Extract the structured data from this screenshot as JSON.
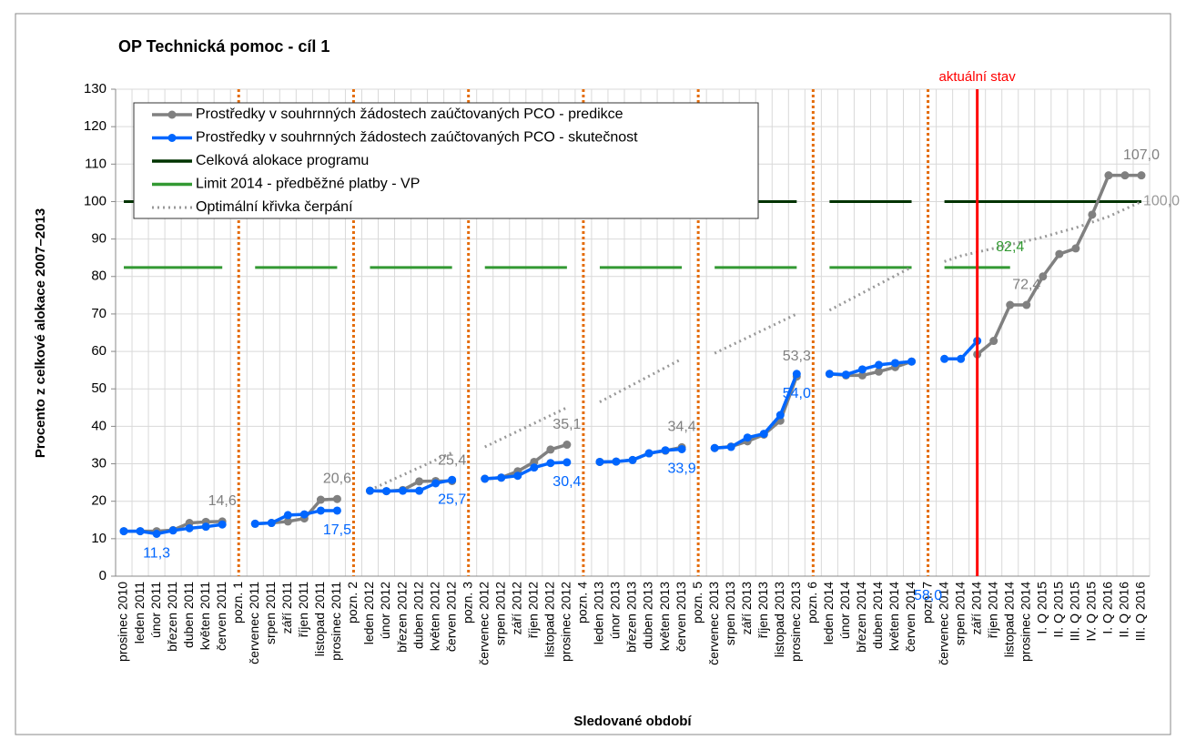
{
  "chart_data": {
    "type": "line",
    "title": "OP Technická pomoc - cíl 1",
    "y_label": "Procento z celkové alokace 2007–2013",
    "x_label": "Sledované období",
    "categories": [
      "prosinec 2010",
      "leden 2011",
      "únor 2011",
      "březen 2011",
      "duben 2011",
      "květen 2011",
      "červen 2011",
      "pozn. 1",
      "červenec 2011",
      "srpen 2011",
      "září 2011",
      "říjen 2011",
      "listopad 2011",
      "prosinec 2011",
      "pozn. 2",
      "leden 2012",
      "únor 2012",
      "březen 2012",
      "duben 2012",
      "květen 2012",
      "červen 2012",
      "pozn. 3",
      "červenec 2012",
      "srpen 2012",
      "září 2012",
      "říjen 2012",
      "listopad 2012",
      "prosinec 2012",
      "pozn. 4",
      "leden 2013",
      "únor 2013",
      "březen 2013",
      "duben 2013",
      "květen 2013",
      "červen 2013",
      "pozn. 5",
      "červenec 2013",
      "srpen 2013",
      "září 2013",
      "říjen 2013",
      "listopad 2013",
      "prosinec 2013",
      "pozn. 6",
      "leden 2014",
      "únor 2014",
      "březen 2014",
      "duben 2014",
      "květen 2014",
      "červen 2014",
      "pozn. 7",
      "červenec 2014",
      "srpen 2014",
      "září 2014",
      "říjen 2014",
      "listopad 2014",
      "prosinec 2014",
      "I. Q 2015",
      "II. Q 2015",
      "III. Q 2015",
      "IV. Q 2015",
      "I. Q 2016",
      "II. Q 2016",
      "III. Q 2016"
    ],
    "separator_indices": [
      7,
      14,
      21,
      28,
      35,
      42,
      49
    ],
    "separator_color": "#e46c0a",
    "current_marker": {
      "category_index": 52,
      "label": "aktuální stav",
      "color": "#ff0000"
    },
    "ylim": [
      0,
      130
    ],
    "yticks": [
      0,
      10,
      20,
      30,
      40,
      50,
      60,
      70,
      80,
      90,
      100,
      110,
      120,
      130
    ],
    "grid": true,
    "legend": "top-left",
    "series": [
      {
        "name": "Prostředky v souhrnných žádostech zaúčtovaných PCO - predikce",
        "color": "#808080",
        "style": "marker",
        "label_side": "above",
        "values": [
          12,
          12,
          12,
          12.3,
          14.2,
          14.5,
          14.6,
          null,
          14,
          14.2,
          14.6,
          15.4,
          20.4,
          20.6,
          null,
          22.8,
          22.7,
          23,
          25.3,
          25.4,
          25.4,
          null,
          26,
          26.3,
          28,
          30.5,
          33.8,
          35.1,
          null,
          30.5,
          30.6,
          31,
          32.8,
          33.5,
          34.4,
          null,
          34.2,
          34.6,
          36,
          37.8,
          41.5,
          53.3,
          null,
          54,
          53.6,
          53.6,
          54.6,
          55.8,
          57.3,
          null,
          null,
          null,
          59.2,
          62.8,
          72.4,
          72.4,
          80,
          86,
          87.5,
          96.5,
          107,
          107,
          107
        ],
        "value_labels": [
          null,
          null,
          null,
          null,
          null,
          null,
          "14,6",
          null,
          null,
          null,
          null,
          null,
          null,
          "20,6",
          null,
          null,
          null,
          null,
          null,
          null,
          "25,4",
          null,
          null,
          null,
          null,
          null,
          null,
          "35,1",
          null,
          null,
          null,
          null,
          null,
          null,
          "34,4",
          null,
          null,
          null,
          null,
          null,
          null,
          "53,3",
          null,
          null,
          null,
          null,
          null,
          null,
          null,
          null,
          null,
          null,
          null,
          null,
          null,
          "72,4",
          null,
          null,
          null,
          null,
          null,
          null,
          "107,0"
        ]
      },
      {
        "name": "Prostředky v souhrnných žádostech zaúčtovaných PCO - skutečnost",
        "color": "#0066ff",
        "style": "marker",
        "label_side": "below",
        "values": [
          12,
          12,
          11.3,
          12.2,
          12.8,
          13.2,
          13.8,
          null,
          14,
          14.2,
          16.3,
          16.5,
          17.5,
          17.5,
          null,
          22.8,
          22.7,
          22.8,
          22.8,
          24.8,
          25.7,
          null,
          26,
          26.3,
          26.8,
          29,
          30.2,
          30.4,
          null,
          30.5,
          30.6,
          31,
          32.8,
          33.6,
          33.9,
          null,
          34.2,
          34.5,
          37,
          38,
          43,
          54,
          null,
          54,
          53.8,
          55.2,
          56.4,
          56.9,
          57.3,
          null,
          58,
          58,
          62.8,
          null,
          null,
          null,
          null,
          null,
          null,
          null,
          null,
          null,
          null
        ],
        "value_labels": [
          null,
          null,
          "11,3",
          null,
          null,
          null,
          null,
          null,
          null,
          null,
          null,
          null,
          null,
          "17,5",
          null,
          null,
          null,
          null,
          null,
          null,
          "25,7",
          null,
          null,
          null,
          null,
          null,
          null,
          "30,4",
          null,
          null,
          null,
          null,
          null,
          null,
          "33,9",
          null,
          null,
          null,
          null,
          null,
          null,
          "54,0",
          null,
          null,
          null,
          null,
          null,
          null,
          null,
          "58,0",
          null,
          null,
          null,
          null,
          null,
          null,
          null,
          null,
          null,
          null,
          null,
          null
        ]
      },
      {
        "name": "Celková alokace programu",
        "color": "#003300",
        "style": "solid",
        "values": [
          100,
          100,
          100,
          100,
          100,
          100,
          100,
          null,
          100,
          100,
          100,
          100,
          100,
          100,
          null,
          100,
          100,
          100,
          100,
          100,
          100,
          null,
          100,
          100,
          100,
          100,
          100,
          100,
          null,
          100,
          100,
          100,
          100,
          100,
          100,
          null,
          100,
          100,
          100,
          100,
          100,
          100,
          null,
          100,
          100,
          100,
          100,
          100,
          100,
          null,
          100,
          100,
          100,
          100,
          100,
          100,
          100,
          100,
          100,
          100,
          100,
          100,
          100
        ]
      },
      {
        "name": "Limit 2014 - předběžné platby  - VP",
        "color": "#339933",
        "style": "solid",
        "label_side": "above",
        "values": [
          82.4,
          82.4,
          82.4,
          82.4,
          82.4,
          82.4,
          82.4,
          null,
          82.4,
          82.4,
          82.4,
          82.4,
          82.4,
          82.4,
          null,
          82.4,
          82.4,
          82.4,
          82.4,
          82.4,
          82.4,
          null,
          82.4,
          82.4,
          82.4,
          82.4,
          82.4,
          82.4,
          null,
          82.4,
          82.4,
          82.4,
          82.4,
          82.4,
          82.4,
          null,
          82.4,
          82.4,
          82.4,
          82.4,
          82.4,
          82.4,
          null,
          82.4,
          82.4,
          82.4,
          82.4,
          82.4,
          82.4,
          null,
          82.4,
          82.4,
          82.4,
          82.4,
          82.4,
          null,
          null,
          null,
          null,
          null,
          null,
          null,
          null
        ],
        "value_labels": [
          null,
          null,
          null,
          null,
          null,
          null,
          null,
          null,
          null,
          null,
          null,
          null,
          null,
          null,
          null,
          null,
          null,
          null,
          null,
          null,
          null,
          null,
          null,
          null,
          null,
          null,
          null,
          null,
          null,
          null,
          null,
          null,
          null,
          null,
          null,
          null,
          null,
          null,
          null,
          null,
          null,
          null,
          null,
          null,
          null,
          null,
          null,
          null,
          null,
          null,
          null,
          null,
          null,
          null,
          "82,4",
          null,
          null,
          null,
          null,
          null,
          null,
          null,
          null
        ]
      },
      {
        "name": "Optimální křivka čerpání",
        "color": "#999999",
        "style": "dotted",
        "label_side": "right",
        "values": [
          null,
          null,
          null,
          null,
          null,
          null,
          null,
          null,
          null,
          null,
          null,
          null,
          null,
          null,
          null,
          23,
          25,
          27,
          29,
          31,
          33,
          null,
          34.5,
          36.6,
          38.7,
          40.8,
          42.9,
          45,
          null,
          46.5,
          48.8,
          51.1,
          53.4,
          55.7,
          58,
          null,
          59.5,
          61.6,
          63.7,
          65.8,
          67.9,
          70,
          null,
          71,
          73.3,
          75.6,
          77.9,
          80.2,
          82.5,
          null,
          84,
          85.5,
          86.5,
          87.5,
          88.5,
          89.5,
          90.5,
          91.8,
          93,
          94.5,
          96,
          98,
          100
        ],
        "value_labels": [
          null,
          null,
          null,
          null,
          null,
          null,
          null,
          null,
          null,
          null,
          null,
          null,
          null,
          null,
          null,
          null,
          null,
          null,
          null,
          null,
          null,
          null,
          null,
          null,
          null,
          null,
          null,
          null,
          null,
          null,
          null,
          null,
          null,
          null,
          null,
          null,
          null,
          null,
          null,
          null,
          null,
          null,
          null,
          null,
          null,
          null,
          null,
          null,
          null,
          null,
          null,
          null,
          null,
          null,
          null,
          null,
          null,
          null,
          null,
          null,
          null,
          null,
          "100,0"
        ]
      }
    ]
  }
}
